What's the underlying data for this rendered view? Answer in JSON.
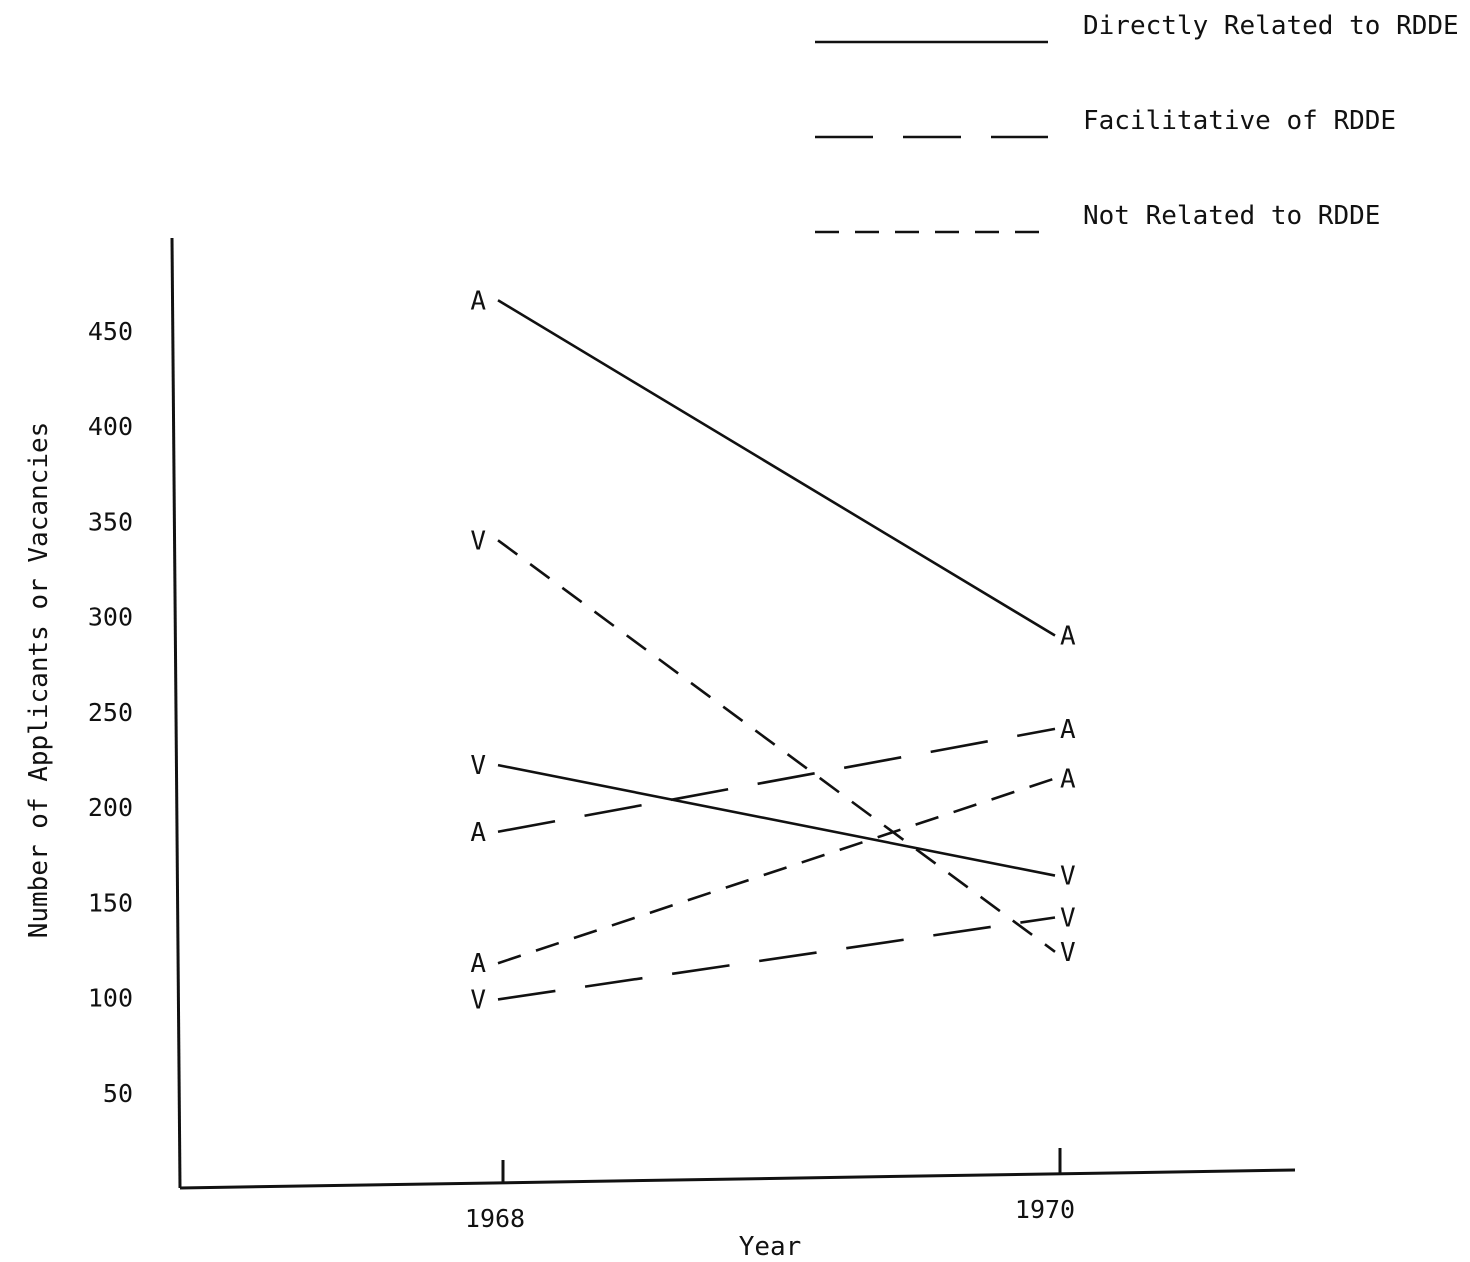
{
  "chart_data": {
    "type": "line",
    "title": "",
    "xlabel": "Year",
    "ylabel": "Number of Applicants or Vacancies",
    "x": [
      "1968",
      "1970"
    ],
    "yticks": [
      "50",
      "100",
      "150",
      "200",
      "250",
      "300",
      "350",
      "400",
      "450"
    ],
    "ylim": [
      0,
      500
    ],
    "grid": false,
    "legend_position": "top-right",
    "legend": [
      {
        "label": "Directly Related to RDDE",
        "style": "solid"
      },
      {
        "label": "Facilitative of RDDE",
        "style": "long-dash"
      },
      {
        "label": "Not Related to RDDE",
        "style": "short-dash"
      }
    ],
    "series": [
      {
        "category": "Directly Related to RDDE",
        "marker": "A",
        "values": [
          466,
          290
        ]
      },
      {
        "category": "Directly Related to RDDE",
        "marker": "V",
        "values": [
          222,
          164
        ]
      },
      {
        "category": "Facilitative of RDDE",
        "marker": "A",
        "values": [
          187,
          241
        ]
      },
      {
        "category": "Facilitative of RDDE",
        "marker": "V",
        "values": [
          99,
          142
        ]
      },
      {
        "category": "Not Related to RDDE",
        "marker": "V",
        "values": [
          340,
          124
        ]
      },
      {
        "category": "Not Related to RDDE",
        "marker": "A",
        "values": [
          118,
          215
        ]
      }
    ]
  }
}
